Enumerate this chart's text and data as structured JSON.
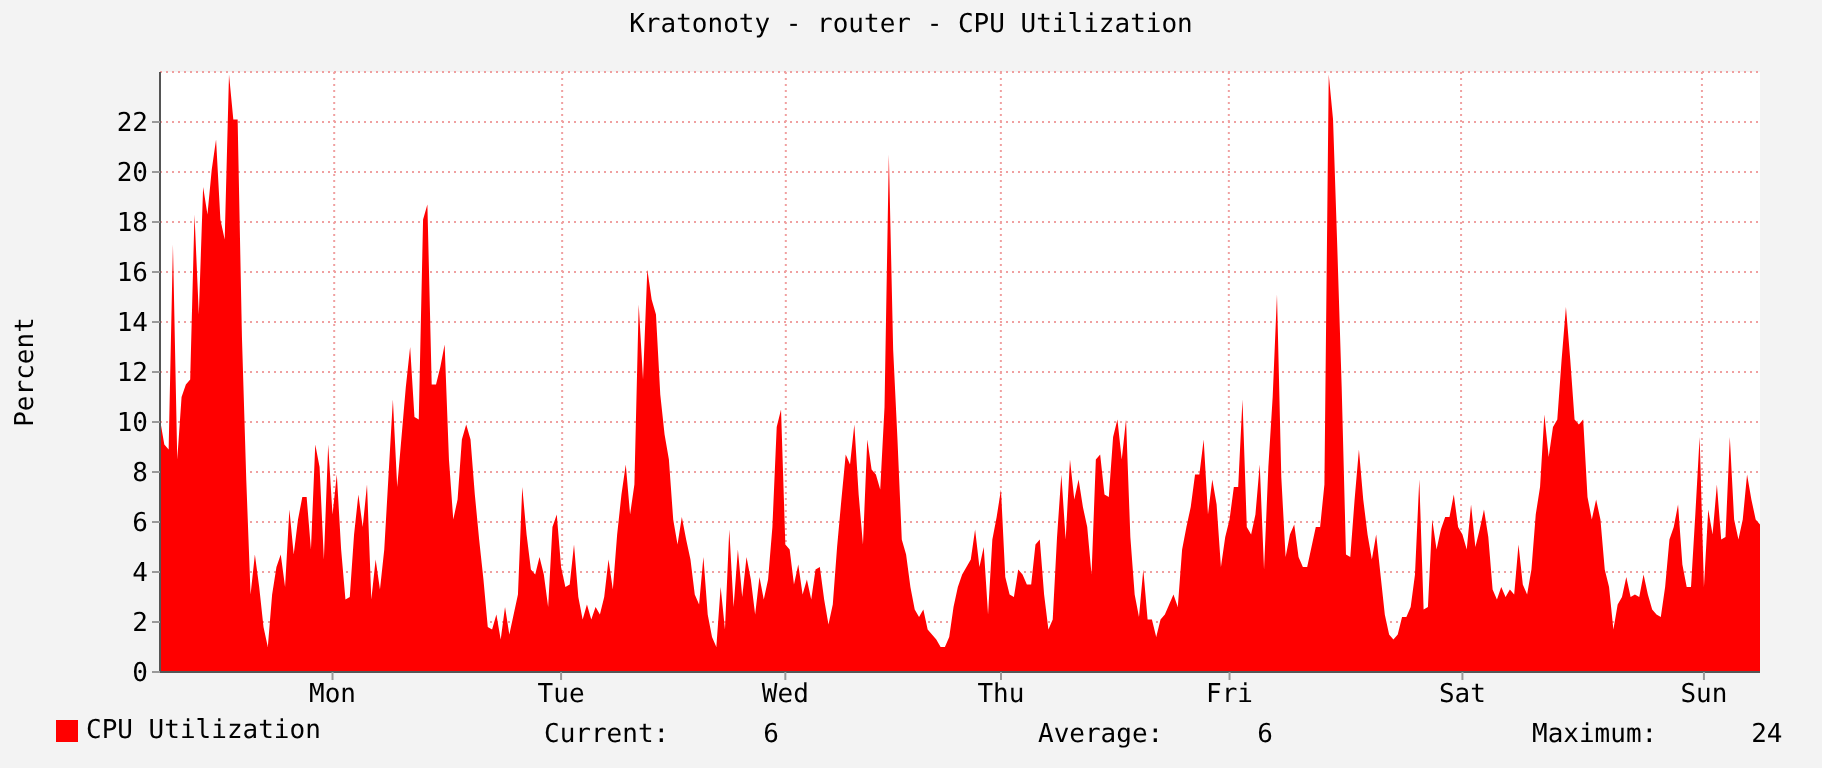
{
  "chart_data": {
    "type": "area",
    "title": "Kratonoty - router - CPU Utilization",
    "ylabel": "Percent",
    "categories": [
      null,
      null,
      null,
      null,
      null,
      null,
      null,
      null,
      null,
      null,
      null,
      null,
      null,
      null,
      null,
      null,
      null,
      null,
      null,
      null,
      null,
      null,
      null,
      null,
      null,
      null,
      null,
      null,
      null,
      null,
      null,
      null,
      null,
      null,
      null,
      null,
      null,
      null,
      null,
      null,
      "Mon",
      null,
      null,
      null,
      null,
      null,
      null,
      null,
      null,
      null,
      null,
      null,
      null,
      null,
      null,
      null,
      null,
      null,
      null,
      null,
      null,
      null,
      null,
      null,
      null,
      null,
      null,
      null,
      null,
      null,
      null,
      null,
      null,
      null,
      null,
      null,
      null,
      null,
      null,
      null,
      null,
      null,
      null,
      null,
      null,
      null,
      null,
      null,
      null,
      null,
      null,
      null,
      null,
      "Tue",
      null,
      null,
      null,
      null,
      null,
      null,
      null,
      null,
      null,
      null,
      null,
      null,
      null,
      null,
      null,
      null,
      null,
      null,
      null,
      null,
      null,
      null,
      null,
      null,
      null,
      null,
      null,
      null,
      null,
      null,
      null,
      null,
      null,
      null,
      null,
      null,
      null,
      null,
      null,
      null,
      null,
      null,
      null,
      null,
      null,
      null,
      null,
      null,
      null,
      null,
      null,
      "Wed",
      null,
      null,
      null,
      null,
      null,
      null,
      null,
      null,
      null,
      null,
      null,
      null,
      null,
      null,
      null,
      null,
      null,
      null,
      null,
      null,
      null,
      null,
      null,
      null,
      null,
      null,
      null,
      null,
      null,
      null,
      null,
      null,
      null,
      null,
      null,
      null,
      null,
      null,
      null,
      null,
      null,
      null,
      null,
      null,
      null,
      null,
      null,
      null,
      null,
      "Thu",
      null,
      null,
      null,
      null,
      null,
      null,
      null,
      null,
      null,
      null,
      null,
      null,
      null,
      null,
      null,
      null,
      null,
      null,
      null,
      null,
      null,
      null,
      null,
      null,
      null,
      null,
      null,
      null,
      null,
      null,
      null,
      null,
      null,
      null,
      null,
      null,
      null,
      null,
      null,
      null,
      null,
      null,
      null,
      null,
      null,
      null,
      null,
      null,
      null,
      null,
      null,
      null,
      "Fri",
      null,
      null,
      null,
      null,
      null,
      null,
      null,
      null,
      null,
      null,
      null,
      null,
      null,
      null,
      null,
      null,
      null,
      null,
      null,
      null,
      null,
      null,
      null,
      null,
      null,
      null,
      null,
      null,
      null,
      null,
      null,
      null,
      null,
      null,
      null,
      null,
      null,
      null,
      null,
      null,
      null,
      null,
      null,
      null,
      null,
      null,
      null,
      null,
      null,
      null,
      null,
      null,
      null,
      "Sat",
      null,
      null,
      null,
      null,
      null,
      null,
      null,
      null,
      null,
      null,
      null,
      null,
      null,
      null,
      null,
      null,
      null,
      null,
      null,
      null,
      null,
      null,
      null,
      null,
      null,
      null,
      null,
      null,
      null,
      null,
      null,
      null,
      null,
      null,
      null,
      null,
      null,
      null,
      null,
      null,
      null,
      null,
      null,
      null,
      null,
      null,
      null,
      null,
      null,
      null,
      null,
      null,
      null,
      null,
      null,
      "Sun",
      null,
      null,
      null,
      null,
      null,
      null,
      null,
      null,
      null,
      null,
      null,
      null,
      null
    ],
    "series": [
      {
        "name": "CPU Utilization",
        "color": "#ff0000",
        "values": [
          10.1,
          9.1,
          8.9,
          17.1,
          8.5,
          11.0,
          11.5,
          11.7,
          18.3,
          14.3,
          19.4,
          18.3,
          20.1,
          21.3,
          18.1,
          17.3,
          23.9,
          22.1,
          22.1,
          13.4,
          7.7,
          3.1,
          4.7,
          3.4,
          1.8,
          1.0,
          3.1,
          4.2,
          4.7,
          3.4,
          6.5,
          4.7,
          6.1,
          7.0,
          7.0,
          4.9,
          9.1,
          8.2,
          4.5,
          9.1,
          6.3,
          7.9,
          4.9,
          2.9,
          3.0,
          5.5,
          7.1,
          5.8,
          7.5,
          2.9,
          4.5,
          3.3,
          4.9,
          7.9,
          10.9,
          7.4,
          9.4,
          11.4,
          13.0,
          10.2,
          10.1,
          18.1,
          18.7,
          11.5,
          11.5,
          12.2,
          13.1,
          8.5,
          6.1,
          6.9,
          9.3,
          9.9,
          9.3,
          7.1,
          5.3,
          3.7,
          1.8,
          1.7,
          2.3,
          1.3,
          2.6,
          1.5,
          2.3,
          3.1,
          7.4,
          5.5,
          4.1,
          3.9,
          4.6,
          3.9,
          2.6,
          5.8,
          6.3,
          4.2,
          3.4,
          3.5,
          5.1,
          3.0,
          2.1,
          2.7,
          2.1,
          2.6,
          2.3,
          3.0,
          4.5,
          3.3,
          5.5,
          7.1,
          8.3,
          6.3,
          7.5,
          14.7,
          11.7,
          16.1,
          14.9,
          14.3,
          11.1,
          9.5,
          8.5,
          6.1,
          5.1,
          6.2,
          5.3,
          4.5,
          3.1,
          2.7,
          4.6,
          2.3,
          1.4,
          1.0,
          3.4,
          1.7,
          5.7,
          2.6,
          4.9,
          3.0,
          4.6,
          3.7,
          2.3,
          3.8,
          2.9,
          3.7,
          5.8,
          9.8,
          10.5,
          5.1,
          4.9,
          3.5,
          4.3,
          3.1,
          3.7,
          2.9,
          4.1,
          4.2,
          2.9,
          1.9,
          2.7,
          5.0,
          6.9,
          8.7,
          8.3,
          9.9,
          7.1,
          5.1,
          9.3,
          8.1,
          7.9,
          7.3,
          10.6,
          20.7,
          12.9,
          9.3,
          5.3,
          4.7,
          3.4,
          2.5,
          2.2,
          2.5,
          1.7,
          1.5,
          1.3,
          1.0,
          1.0,
          1.4,
          2.6,
          3.4,
          3.9,
          4.2,
          4.5,
          5.7,
          4.2,
          5.0,
          2.3,
          5.3,
          6.2,
          7.3,
          3.8,
          3.1,
          3.0,
          4.1,
          3.9,
          3.5,
          3.5,
          5.1,
          5.3,
          3.1,
          1.7,
          2.1,
          5.4,
          7.9,
          5.3,
          8.5,
          6.9,
          7.7,
          6.6,
          5.8,
          3.9,
          8.5,
          8.7,
          7.1,
          7.0,
          9.4,
          10.1,
          8.5,
          10.1,
          5.4,
          3.1,
          2.2,
          4.1,
          2.1,
          2.1,
          1.4,
          2.1,
          2.3,
          2.7,
          3.1,
          2.6,
          4.9,
          5.8,
          6.6,
          7.9,
          7.9,
          9.3,
          6.3,
          7.7,
          6.7,
          4.2,
          5.4,
          6.1,
          7.4,
          7.4,
          10.9,
          5.8,
          5.5,
          6.3,
          8.3,
          4.1,
          8.2,
          11.0,
          15.1,
          7.8,
          4.6,
          5.5,
          5.9,
          4.6,
          4.2,
          4.2,
          5.0,
          5.8,
          5.8,
          7.5,
          23.9,
          22.1,
          16.9,
          11.4,
          4.7,
          4.6,
          6.9,
          8.9,
          6.9,
          5.5,
          4.5,
          5.5,
          3.9,
          2.3,
          1.5,
          1.3,
          1.5,
          2.2,
          2.2,
          2.6,
          3.9,
          7.7,
          2.5,
          2.6,
          6.1,
          4.9,
          5.7,
          6.2,
          6.2,
          7.1,
          5.8,
          5.5,
          4.9,
          6.7,
          5.0,
          5.7,
          6.5,
          5.4,
          3.3,
          2.9,
          3.4,
          3.0,
          3.3,
          3.1,
          5.1,
          3.5,
          3.1,
          4.1,
          6.3,
          7.4,
          10.3,
          8.6,
          9.8,
          10.1,
          12.5,
          14.6,
          12.5,
          10.1,
          9.9,
          10.1,
          7.0,
          6.1,
          6.9,
          6.1,
          4.1,
          3.4,
          1.7,
          2.7,
          3.0,
          3.8,
          3.0,
          3.1,
          3.0,
          3.9,
          3.1,
          2.5,
          2.3,
          2.2,
          3.4,
          5.3,
          5.8,
          6.7,
          4.3,
          3.4,
          3.4,
          6.3,
          9.4,
          3.4,
          6.5,
          5.5,
          7.5,
          5.3,
          5.4,
          9.4,
          6.1,
          5.3,
          6.1,
          7.9,
          6.9,
          6.1,
          5.9
        ]
      }
    ],
    "ylim": [
      0,
      24
    ],
    "yticks": [
      0,
      2,
      4,
      6,
      8,
      10,
      12,
      14,
      16,
      18,
      20,
      22
    ],
    "grid": true,
    "legend": "bottom left",
    "annotations": [
      "Current:      6",
      "Average:      6",
      "Maximum:      24"
    ]
  }
}
